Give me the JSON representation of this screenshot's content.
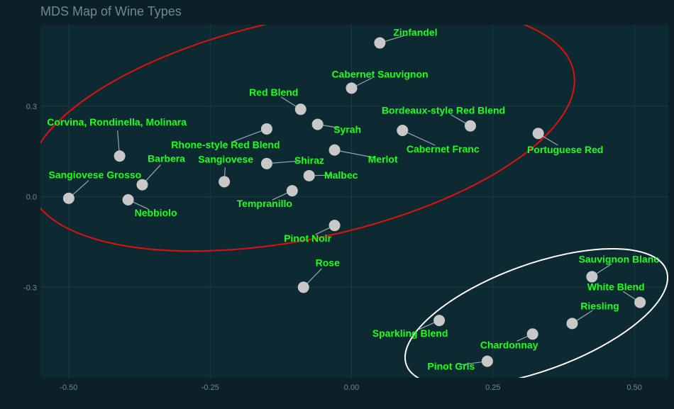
{
  "colors": {
    "background": "#0b2027",
    "panel": "#0d2a33",
    "grid": "#1a3a44",
    "text_muted": "#6d8a92",
    "point": "#c8c8c8",
    "label": "#19ff19",
    "red_ellipse": "#e01010",
    "white_ellipse": "#ffffff"
  },
  "chart_data": {
    "type": "scatter",
    "title": "MDS Map of Wine Types",
    "xlabel": "",
    "ylabel": "",
    "xlim": [
      -0.55,
      0.56
    ],
    "ylim": [
      -0.6,
      0.57
    ],
    "x_ticks": [
      -0.5,
      -0.25,
      0.0,
      0.25,
      0.5
    ],
    "x_tick_labels": [
      "-0.50",
      "-0.25",
      "0.00",
      "0.25",
      "0.50"
    ],
    "y_ticks": [
      -0.3,
      0.0,
      0.3
    ],
    "y_tick_labels": [
      "-0.3",
      "0.0",
      "0.3"
    ],
    "grid": true,
    "points": [
      {
        "name": "Zinfandel",
        "x": 0.05,
        "y": 0.51
      },
      {
        "name": "Cabernet Sauvignon",
        "x": 0.0,
        "y": 0.36
      },
      {
        "name": "Red Blend",
        "x": -0.09,
        "y": 0.29
      },
      {
        "name": "Syrah",
        "x": -0.06,
        "y": 0.24
      },
      {
        "name": "Bordeaux-style Red Blend",
        "x": 0.21,
        "y": 0.235
      },
      {
        "name": "Cabernet Franc",
        "x": 0.09,
        "y": 0.22
      },
      {
        "name": "Portuguese Red",
        "x": 0.33,
        "y": 0.21
      },
      {
        "name": "Rhone-style Red Blend",
        "x": -0.15,
        "y": 0.225
      },
      {
        "name": "Corvina, Rondinella, Molinara",
        "x": -0.41,
        "y": 0.135
      },
      {
        "name": "Merlot",
        "x": -0.03,
        "y": 0.155
      },
      {
        "name": "Shiraz",
        "x": -0.15,
        "y": 0.11
      },
      {
        "name": "Barbera",
        "x": -0.37,
        "y": 0.04
      },
      {
        "name": "Sangiovese",
        "x": -0.225,
        "y": 0.05
      },
      {
        "name": "Malbec",
        "x": -0.075,
        "y": 0.07
      },
      {
        "name": "Sangiovese Grosso",
        "x": -0.5,
        "y": -0.005
      },
      {
        "name": "Nebbiolo",
        "x": -0.395,
        "y": -0.01
      },
      {
        "name": "Tempranillo",
        "x": -0.105,
        "y": 0.02
      },
      {
        "name": "Pinot Noir",
        "x": -0.03,
        "y": -0.095
      },
      {
        "name": "Rose",
        "x": -0.085,
        "y": -0.3
      },
      {
        "name": "Sauvignon Blanc",
        "x": 0.425,
        "y": -0.265
      },
      {
        "name": "White Blend",
        "x": 0.51,
        "y": -0.35
      },
      {
        "name": "Riesling",
        "x": 0.39,
        "y": -0.42
      },
      {
        "name": "Sparkling Blend",
        "x": 0.155,
        "y": -0.41
      },
      {
        "name": "Chardonnay",
        "x": 0.32,
        "y": -0.455
      },
      {
        "name": "Pinot Gris",
        "x": 0.24,
        "y": -0.545
      }
    ]
  }
}
